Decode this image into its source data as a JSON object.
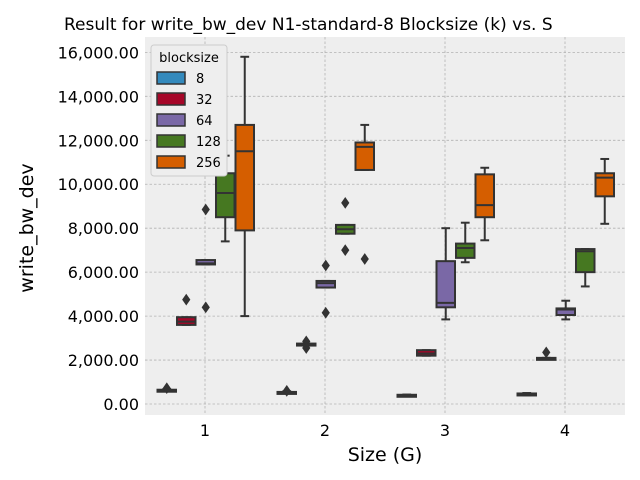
{
  "chart_data": {
    "type": "box",
    "title": "Result for write_bw_dev N1-standard-8 Blocksize (k) vs. S",
    "xlabel": "Size (G)",
    "ylabel": "write_bw_dev",
    "categories": [
      "1",
      "2",
      "3",
      "4"
    ],
    "ylim": [
      -500,
      16700
    ],
    "yticks": [
      0,
      2000,
      4000,
      6000,
      8000,
      10000,
      12000,
      14000,
      16000
    ],
    "ytick_labels": [
      "0.00",
      "2,000.00",
      "4,000.00",
      "6,000.00",
      "8,000.00",
      "10,000.00",
      "12,000.00",
      "14,000.00",
      "16,000.00"
    ],
    "grid": true,
    "legend": {
      "title": "blocksize",
      "position": "upper-left"
    },
    "series": [
      {
        "name": "8",
        "color": "#348ABD",
        "boxes": [
          {
            "whislo": 600,
            "q1": 600,
            "med": 620,
            "q3": 650,
            "whishi": 680,
            "fliers": [
              720
            ]
          },
          {
            "whislo": 480,
            "q1": 500,
            "med": 520,
            "q3": 550,
            "whishi": 580,
            "fliers": [
              600
            ]
          },
          {
            "whislo": 380,
            "q1": 400,
            "med": 410,
            "q3": 420,
            "whishi": 430,
            "fliers": []
          },
          {
            "whislo": 400,
            "q1": 420,
            "med": 450,
            "q3": 480,
            "whishi": 500,
            "fliers": []
          }
        ]
      },
      {
        "name": "32",
        "color": "#A60628",
        "boxes": [
          {
            "whislo": 3600,
            "q1": 3600,
            "med": 3750,
            "q3": 3950,
            "whishi": 3950,
            "fliers": [
              4750
            ]
          },
          {
            "whislo": 2700,
            "q1": 2700,
            "med": 2700,
            "q3": 2750,
            "whishi": 2750,
            "fliers": [
              2550,
              2850
            ]
          },
          {
            "whislo": 2200,
            "q1": 2200,
            "med": 2300,
            "q3": 2450,
            "whishi": 2450,
            "fliers": []
          },
          {
            "whislo": 2050,
            "q1": 2050,
            "med": 2080,
            "q3": 2100,
            "whishi": 2100,
            "fliers": [
              2350
            ]
          }
        ]
      },
      {
        "name": "64",
        "color": "#7A68A6",
        "boxes": [
          {
            "whislo": 6350,
            "q1": 6350,
            "med": 6400,
            "q3": 6550,
            "whishi": 6550,
            "fliers": [
              8850,
              4400
            ]
          },
          {
            "whislo": 5300,
            "q1": 5300,
            "med": 5500,
            "q3": 5600,
            "whishi": 5600,
            "fliers": [
              6300,
              4150
            ]
          },
          {
            "whislo": 3850,
            "q1": 4400,
            "med": 4600,
            "q3": 6500,
            "whishi": 8000,
            "fliers": []
          },
          {
            "whislo": 3850,
            "q1": 4050,
            "med": 4300,
            "q3": 4350,
            "whishi": 4700,
            "fliers": []
          }
        ]
      },
      {
        "name": "128",
        "color": "#467821",
        "boxes": [
          {
            "whislo": 7400,
            "q1": 8500,
            "med": 9600,
            "q3": 10500,
            "whishi": 11300,
            "fliers": []
          },
          {
            "whislo": 7750,
            "q1": 7750,
            "med": 7950,
            "q3": 8150,
            "whishi": 8150,
            "fliers": [
              9150,
              7000
            ]
          },
          {
            "whislo": 6450,
            "q1": 6650,
            "med": 7100,
            "q3": 7300,
            "whishi": 8250,
            "fliers": []
          },
          {
            "whislo": 5350,
            "q1": 6000,
            "med": 6950,
            "q3": 7050,
            "whishi": 7050,
            "fliers": []
          }
        ]
      },
      {
        "name": "256",
        "color": "#D55E00",
        "boxes": [
          {
            "whislo": 4000,
            "q1": 7900,
            "med": 11500,
            "q3": 12700,
            "whishi": 15800,
            "fliers": []
          },
          {
            "whislo": 10650,
            "q1": 10650,
            "med": 11700,
            "q3": 11900,
            "whishi": 12700,
            "fliers": [
              6600
            ]
          },
          {
            "whislo": 7450,
            "q1": 8500,
            "med": 9050,
            "q3": 10450,
            "whishi": 10750,
            "fliers": []
          },
          {
            "whislo": 8200,
            "q1": 9450,
            "med": 10300,
            "q3": 10500,
            "whishi": 11150,
            "fliers": []
          }
        ]
      }
    ]
  }
}
